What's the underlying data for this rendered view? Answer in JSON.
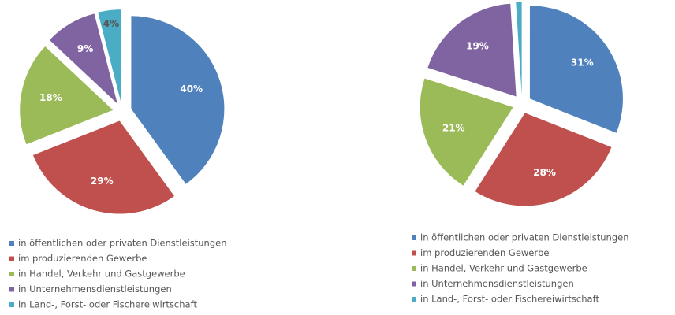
{
  "chart_data": [
    {
      "type": "pie",
      "categories": [
        "in öffentlichen oder privaten Dienstleistungen",
        "im produzierenden Gewerbe",
        "in Handel, Verkehr und Gastgewerbe",
        "in Unternehmensdienstleistungen",
        "in Land-, Forst- oder Fischereiwirtschaft"
      ],
      "values": [
        40,
        29,
        18,
        9,
        4
      ],
      "value_labels": [
        "40%",
        "29%",
        "18%",
        "9%",
        "4%"
      ],
      "colors": [
        "#4f81bd",
        "#c0504d",
        "#9bbb59",
        "#8064a2",
        "#4bacc6"
      ]
    },
    {
      "type": "pie",
      "categories": [
        "in öffentlichen oder privaten Dienstleistungen",
        "im produzierenden Gewerbe",
        "in Handel, Verkehr und Gastgewerbe",
        "in Unternehmensdienstleistungen",
        "in Land-, Forst- oder Fischereiwirtschaft"
      ],
      "values": [
        31,
        28,
        21,
        19,
        1
      ],
      "value_labels": [
        "31%",
        "28%",
        "21%",
        "19%",
        null
      ],
      "colors": [
        "#4f81bd",
        "#c0504d",
        "#9bbb59",
        "#8064a2",
        "#4bacc6"
      ]
    }
  ]
}
